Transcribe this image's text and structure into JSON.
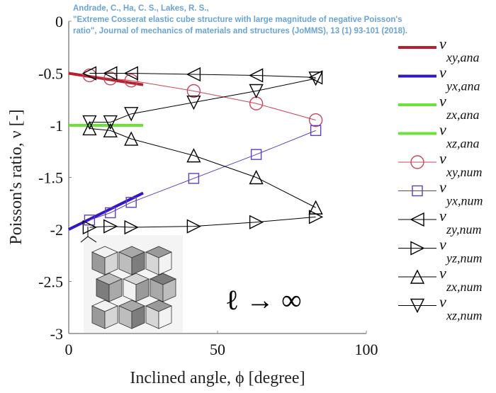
{
  "citation": {
    "line1": "Andrade, C., Ha, C. S., Lakes, R. S.,",
    "line2": "\"Extreme Cosserat elastic cube structure with large magnitude of negative Poisson's",
    "line3": "ratio\", Journal of mechanics of materials and structures (JoMMS), 13 (1) 93-101 (2018)."
  },
  "chart_data": {
    "type": "line",
    "xlabel": "Inclined angle, ϕ [degree]",
    "ylabel": "Poisson's ratio, ν [-]",
    "xlim": [
      0,
      100
    ],
    "ylim": [
      -3,
      0
    ],
    "xticks": [
      0,
      50,
      100
    ],
    "yticks": [
      0,
      -0.5,
      -1,
      -1.5,
      -2,
      -2.5,
      -3
    ],
    "grid": false,
    "legend_placement": "outside-right",
    "annotation": "ℓ → ∞",
    "series": [
      {
        "name": "ν xy,ana",
        "symbol": "ν",
        "sub": "xy,ana",
        "kind": "analytical",
        "color": "#b8202e",
        "x": [
          0,
          25
        ],
        "y": [
          -0.5,
          -0.61
        ]
      },
      {
        "name": "ν yx,ana",
        "symbol": "ν",
        "sub": "yx,ana",
        "kind": "analytical",
        "color": "#3514c4",
        "x": [
          0,
          25
        ],
        "y": [
          -2.0,
          -1.65
        ]
      },
      {
        "name": "ν zx,ana",
        "symbol": "ν",
        "sub": "zx,ana",
        "kind": "analytical",
        "color": "#6ee03a",
        "x": [
          0,
          25
        ],
        "y": [
          -1.0,
          -1.0
        ]
      },
      {
        "name": "ν xz,ana",
        "symbol": "ν",
        "sub": "xz,ana",
        "kind": "analytical",
        "color": "#6ee03a",
        "x": [
          0,
          25
        ],
        "y": [
          -1.0,
          -1.0
        ]
      },
      {
        "name": "ν xy,num",
        "symbol": "ν",
        "sub": "xy,num",
        "kind": "numerical",
        "marker": "circle",
        "color": "#c8455a",
        "x": [
          7,
          14,
          21,
          42,
          63,
          83
        ],
        "y": [
          -0.52,
          -0.55,
          -0.57,
          -0.67,
          -0.79,
          -0.95
        ]
      },
      {
        "name": "ν yx,num",
        "symbol": "ν",
        "sub": "yx,num",
        "kind": "numerical",
        "marker": "square",
        "color": "#5b3fc0",
        "x": [
          7,
          14,
          21,
          42,
          63,
          83
        ],
        "y": [
          -1.91,
          -1.84,
          -1.74,
          -1.51,
          -1.28,
          -1.05
        ]
      },
      {
        "name": "ν zy,num",
        "symbol": "ν",
        "sub": "zy,num",
        "kind": "numerical",
        "marker": "triangle-left",
        "color": "#000000",
        "x": [
          7,
          14,
          21,
          42,
          63,
          83
        ],
        "y": [
          -0.5,
          -0.5,
          -0.5,
          -0.51,
          -0.52,
          -0.54
        ]
      },
      {
        "name": "ν yz,num",
        "symbol": "ν",
        "sub": "yz,num",
        "kind": "numerical",
        "marker": "triangle-right",
        "color": "#000000",
        "x": [
          7,
          14,
          21,
          42,
          63,
          83
        ],
        "y": [
          -1.98,
          -1.97,
          -1.98,
          -1.97,
          -1.93,
          -1.88
        ]
      },
      {
        "name": "ν zx,num",
        "symbol": "ν",
        "sub": "zx,num",
        "kind": "numerical",
        "marker": "triangle-up",
        "color": "#000000",
        "x": [
          7,
          14,
          21,
          42,
          63,
          83
        ],
        "y": [
          -1.03,
          -1.05,
          -1.13,
          -1.29,
          -1.5,
          -1.79
        ]
      },
      {
        "name": "ν xz,num",
        "symbol": "ν",
        "sub": "xz,num",
        "kind": "numerical",
        "marker": "triangle-down",
        "color": "#000000",
        "x": [
          7,
          14,
          21,
          42,
          63,
          83
        ],
        "y": [
          -0.97,
          -0.97,
          -0.89,
          -0.78,
          -0.67,
          -0.55
        ]
      }
    ]
  }
}
